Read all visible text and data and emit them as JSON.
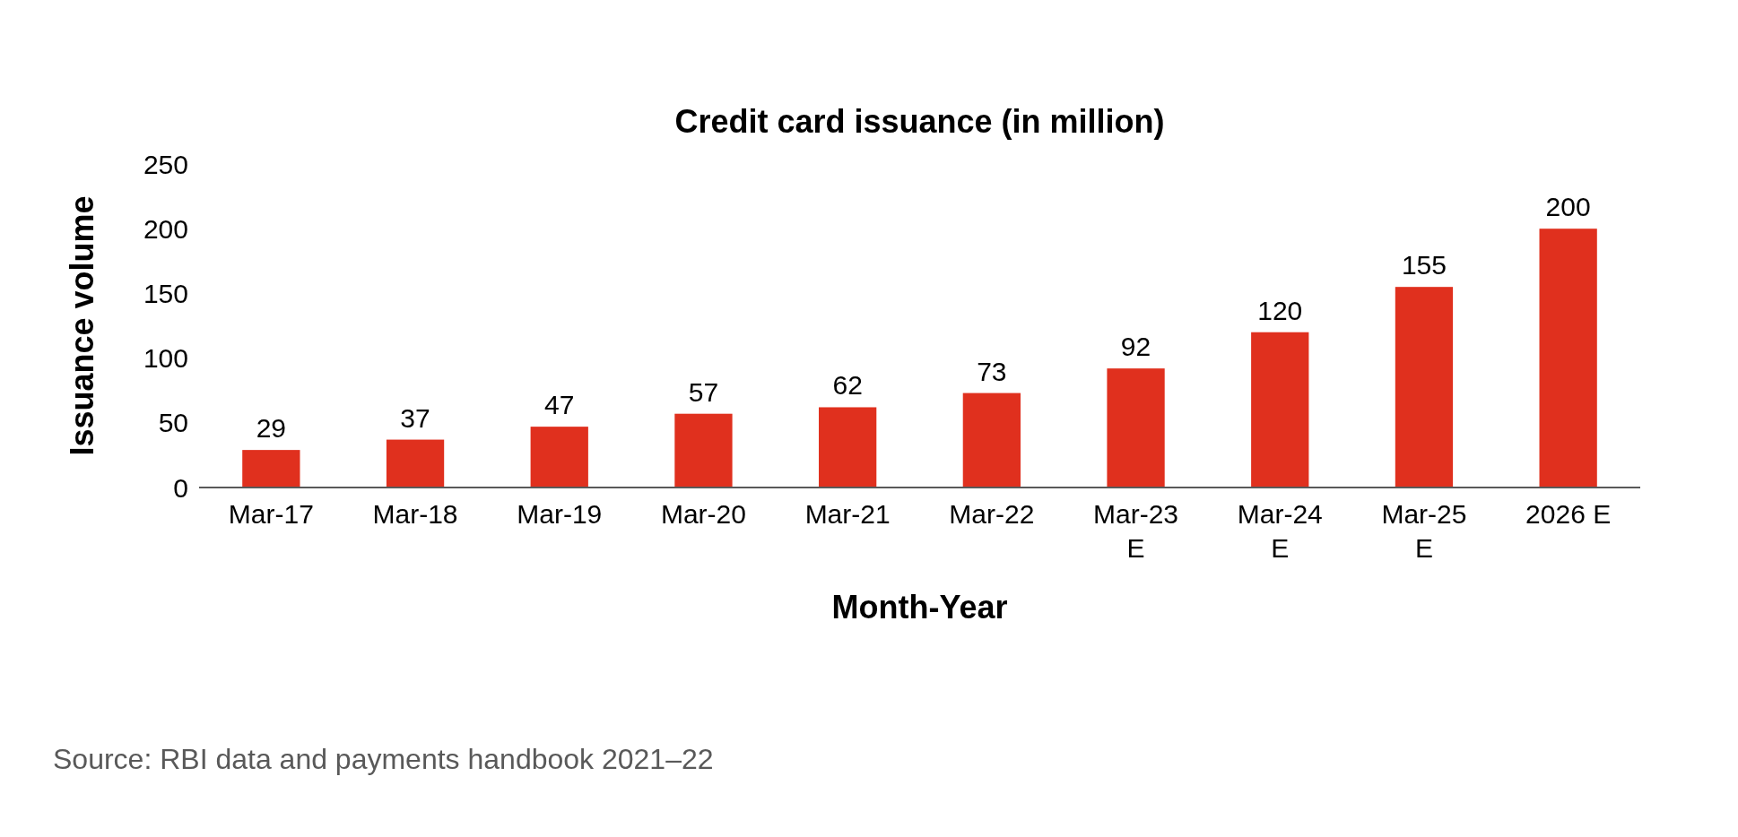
{
  "chart_data": {
    "type": "bar",
    "title": "Credit card issuance (in million)",
    "xlabel": "Month-Year",
    "ylabel": "Issuance volume",
    "categories": [
      "Mar-17",
      "Mar-18",
      "Mar-19",
      "Mar-20",
      "Mar-21",
      "Mar-22",
      "Mar-23\nE",
      "Mar-24\nE",
      "Mar-25\nE",
      "2026 E"
    ],
    "values": [
      29,
      37,
      47,
      57,
      62,
      73,
      92,
      120,
      155,
      200
    ],
    "color": "#e0301e",
    "ylim": [
      0,
      250
    ],
    "yticks": [
      0,
      50,
      100,
      150,
      200,
      250
    ],
    "grid": false,
    "data_labels": true,
    "annotations": [
      "Source: RBI data and payments handbook 2021–22"
    ]
  }
}
